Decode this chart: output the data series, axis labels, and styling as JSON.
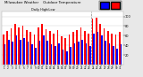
{
  "title": "Milwaukee Weather    Outdoor Temperature",
  "subtitle": "Daily High/Low",
  "highs": [
    62,
    70,
    75,
    85,
    78,
    80,
    72,
    68,
    62,
    78,
    85,
    74,
    70,
    65,
    72,
    58,
    55,
    62,
    68,
    72,
    78,
    70,
    65,
    95,
    98,
    85,
    75,
    70,
    65,
    62,
    68
  ],
  "lows": [
    42,
    52,
    48,
    60,
    52,
    55,
    48,
    42,
    35,
    50,
    60,
    50,
    42,
    38,
    45,
    32,
    28,
    36,
    44,
    48,
    52,
    44,
    38,
    65,
    68,
    60,
    50,
    45,
    38,
    34,
    42
  ],
  "days": [
    "1",
    "2",
    "3",
    "4",
    "5",
    "6",
    "7",
    "8",
    "9",
    "10",
    "11",
    "12",
    "13",
    "14",
    "15",
    "16",
    "17",
    "18",
    "19",
    "20",
    "21",
    "22",
    "23",
    "24",
    "25",
    "26",
    "27",
    "28",
    "29",
    "30",
    "31"
  ],
  "high_color": "#ff0000",
  "low_color": "#0000ff",
  "bg_color": "#e8e8e8",
  "plot_bg": "#ffffff",
  "ylim": [
    0,
    110
  ],
  "ytick_vals": [
    20,
    40,
    60,
    80,
    100
  ],
  "bar_width": 0.38,
  "dashed_day_idx": 23,
  "legend_hi_color": "#ff0000",
  "legend_lo_color": "#0000ff"
}
